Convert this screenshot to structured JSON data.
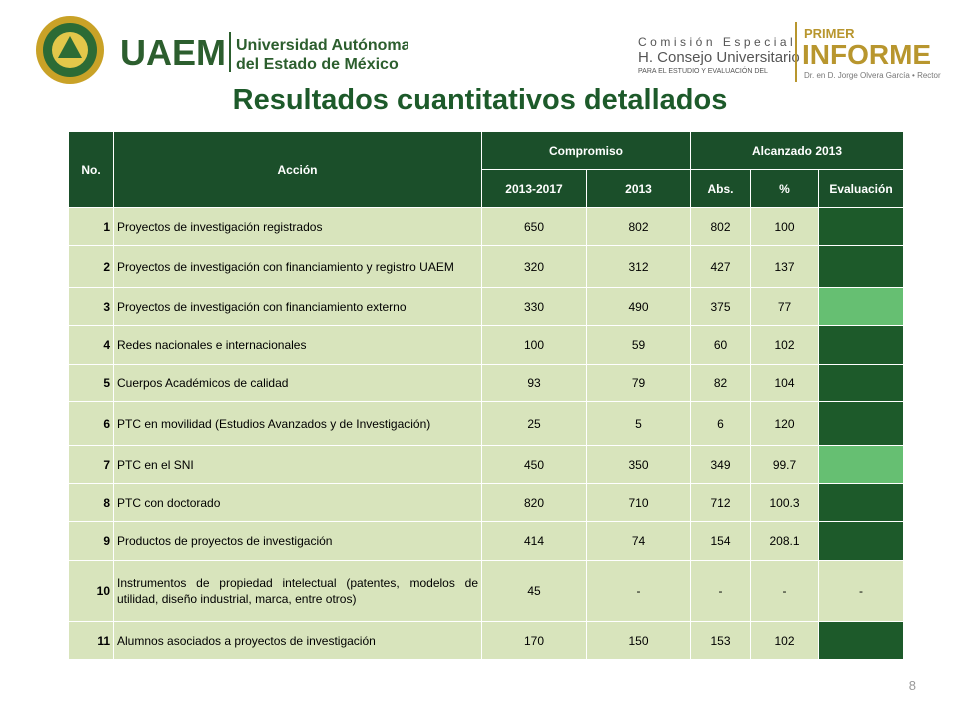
{
  "header": {
    "logo_left": {
      "name": "UAEM",
      "line1": "Universidad Autónoma",
      "line2": "del Estado de México"
    },
    "logo_right": {
      "line1": "Comisión Especial",
      "line2": "H. Consejo Universitario",
      "line3": "PARA EL ESTUDIO Y EVALUACIÓN DEL",
      "brand1": "PRIMER",
      "brand2": "INFORME",
      "brand3": "Dr. en D. Jorge Olvera García • Rector"
    }
  },
  "title": "Resultados cuantitativos detallados",
  "table": {
    "header": {
      "no": "No.",
      "accion": "Acción",
      "compromiso": "Compromiso",
      "alcanzado": "Alcanzado 2013",
      "sub": [
        "2013-2017",
        "2013",
        "Abs.",
        "%",
        "Evaluación"
      ]
    },
    "eval_colors": {
      "dark": "#1d5a2a",
      "light": "#66bf72"
    },
    "rows": [
      {
        "cells": [
          "1",
          "Proyectos de investigación registrados",
          "650",
          "802",
          "802",
          "100"
        ],
        "eval": "dark"
      },
      {
        "cells": [
          "2",
          "Proyectos de investigación con financiamiento y registro UAEM",
          "320",
          "312",
          "427",
          "137"
        ],
        "eval": "dark"
      },
      {
        "cells": [
          "3",
          "Proyectos de investigación con financiamiento externo",
          "330",
          "490",
          "375",
          "77"
        ],
        "eval": "light"
      },
      {
        "cells": [
          "4",
          "Redes nacionales e internacionales",
          "100",
          "59",
          "60",
          "102"
        ],
        "eval": "dark"
      },
      {
        "cells": [
          "5",
          "Cuerpos Académicos de calidad",
          "93",
          "79",
          "82",
          "104"
        ],
        "eval": "dark"
      },
      {
        "cells": [
          "6",
          "PTC en movilidad (Estudios Avanzados y de Investigación)",
          "25",
          "5",
          "6",
          "120"
        ],
        "eval": "dark"
      },
      {
        "cells": [
          "7",
          "PTC en el SNI",
          "450",
          "350",
          "349",
          "99.7"
        ],
        "eval": "light"
      },
      {
        "cells": [
          "8",
          "PTC con doctorado",
          "820",
          "710",
          "712",
          "100.3"
        ],
        "eval": "dark"
      },
      {
        "cells": [
          "9",
          "Productos de proyectos de investigación",
          "414",
          "74",
          "154",
          "208.1"
        ],
        "eval": "dark"
      },
      {
        "cells": [
          "10",
          "Instrumentos de propiedad intelectual (patentes, modelos de utilidad, diseño industrial, marca, entre otros)",
          "45",
          "-",
          "-",
          "-"
        ],
        "eval_text": "-"
      },
      {
        "cells": [
          "11",
          "Alumnos asociados a proyectos de investigación",
          "170",
          "150",
          "153",
          "102"
        ],
        "eval": "dark"
      }
    ]
  },
  "page_number": "8"
}
